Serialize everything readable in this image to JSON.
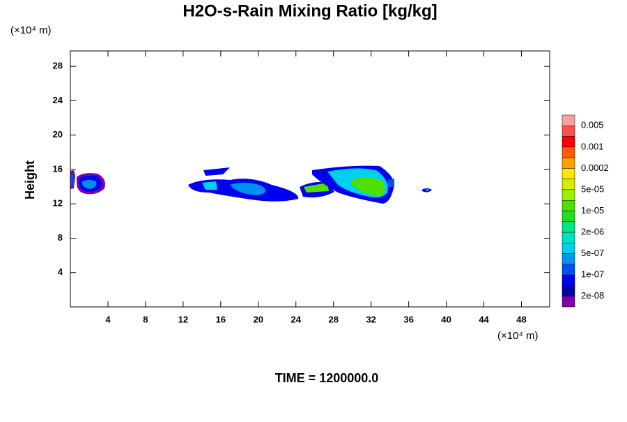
{
  "chart_data": {
    "type": "contour",
    "title": "H2O-s-Rain Mixing Ratio [kg/kg]",
    "x_unit": "(×10⁴ m)",
    "y_unit": "(×10⁴ m)",
    "ylabel": "Height",
    "footer": "TIME = 1200000.0",
    "xlim": [
      0,
      51
    ],
    "xticks": [
      4,
      8,
      12,
      16,
      20,
      24,
      28,
      32,
      36,
      40,
      44,
      48
    ],
    "ylim": [
      0,
      29.8
    ],
    "yticks": [
      4,
      8,
      12,
      16,
      20,
      24,
      28
    ],
    "colorbar_colors": [
      "#ff9f9f",
      "#ff5050",
      "#ff0000",
      "#ff5a00",
      "#ffa000",
      "#ffe600",
      "#d2f000",
      "#a0f000",
      "#50e000",
      "#20e020",
      "#00e880",
      "#00e0c0",
      "#00d0f0",
      "#0096f0",
      "#0050f0",
      "#0000f0",
      "#0000a0",
      "#8000b0"
    ],
    "colorbar_labels": [
      "0.005",
      "0.001",
      "0.0002",
      "5e-05",
      "1e-05",
      "2e-06",
      "5e-07",
      "1e-07",
      "2e-08"
    ]
  }
}
